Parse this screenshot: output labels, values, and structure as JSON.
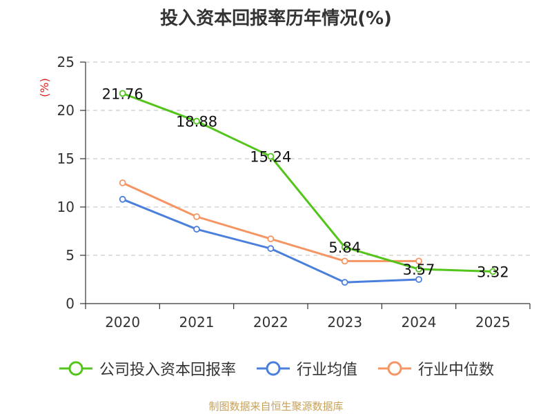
{
  "chart_data": {
    "type": "line",
    "title": "投入资本回报率历年情况(%)",
    "ylabel": "(%)",
    "xlabel": "",
    "categories": [
      "2020",
      "2021",
      "2022",
      "2023",
      "2024",
      "2025"
    ],
    "ylim": [
      0,
      25
    ],
    "yticks": [
      0,
      5,
      10,
      15,
      20,
      25
    ],
    "grid": true,
    "legend_position": "bottom",
    "series": [
      {
        "name": "公司投入资本回报率",
        "color": "#52c41a",
        "values": [
          21.76,
          18.88,
          15.24,
          5.84,
          3.57,
          3.32
        ],
        "labels": [
          "21.76",
          "18.88",
          "15.24",
          "5.84",
          "3.57",
          "3.32"
        ]
      },
      {
        "name": "行业均值",
        "color": "#4a7fdb",
        "values": [
          10.8,
          7.7,
          5.7,
          2.2,
          2.5,
          null
        ]
      },
      {
        "name": "行业中位数",
        "color": "#f59563",
        "values": [
          12.5,
          9.0,
          6.7,
          4.4,
          4.4,
          null
        ]
      }
    ]
  },
  "source_text": "制图数据来自恒生聚源数据库"
}
